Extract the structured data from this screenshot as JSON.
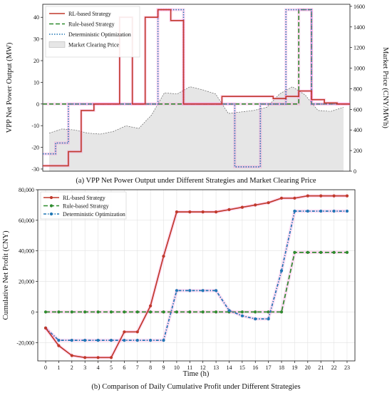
{
  "colors": {
    "rl": "#c0392b",
    "rule": "#2e8b2e",
    "det": "#1f77b4",
    "price_fill": "#e6e6e6",
    "price_line": "#666666",
    "glow": "#ff66cc"
  },
  "chart_data": [
    {
      "type": "line",
      "subtype": "step-with-area",
      "caption": "(a) VPP Net Power Output under Different Strategies and Market Clearing Price",
      "ylabel": "VPP Net Power Output (MW)",
      "ylabel_right": "Market Price (CNY/MWh)",
      "ylim": [
        -31,
        46
      ],
      "ylim_right": [
        0,
        1620
      ],
      "yticks": [
        -30,
        -20,
        -10,
        0,
        10,
        20,
        30,
        40
      ],
      "yticks_right": [
        0,
        200,
        400,
        600,
        800,
        1000,
        1200,
        1400,
        1600
      ],
      "xlim": [
        0,
        24
      ],
      "legend_position": "top-left",
      "series": [
        {
          "name": "RL-based Strategy",
          "style": "solid",
          "color": "#c0392b",
          "values": [
            -28.5,
            -28.5,
            -22,
            -3,
            0,
            0,
            40,
            0,
            40,
            43.5,
            38.5,
            0,
            0,
            0,
            3.5,
            3.5,
            3.5,
            3.5,
            2.5,
            3.5,
            6,
            2,
            0.5,
            0
          ]
        },
        {
          "name": "Rule-based Strategy",
          "style": "dashed",
          "color": "#2e8b2e",
          "values": [
            0,
            0,
            0,
            0,
            0,
            0,
            0,
            0,
            0,
            0,
            0,
            0,
            0,
            0,
            0,
            0,
            0,
            0,
            0,
            0,
            43.5,
            0,
            0,
            0
          ]
        },
        {
          "name": "Deterministic Optimization",
          "style": "dotted",
          "color": "#1f77b4",
          "values": [
            -23,
            -18,
            0,
            0,
            0,
            0,
            0,
            0,
            0,
            43.5,
            43.5,
            0,
            0,
            0,
            0,
            -29,
            -29,
            0,
            0,
            43.5,
            43.5,
            0,
            0,
            0
          ]
        },
        {
          "name": "Market Clearing Price",
          "style": "area",
          "color": "#e6e6e6",
          "axis": "right",
          "x": [
            0.5,
            1.5,
            2.5,
            3.5,
            4.5,
            5.5,
            6.5,
            7.5,
            8.5,
            9.5,
            10.5,
            11.5,
            12.5,
            13.5,
            14.5,
            15.5,
            16.5,
            17.5,
            18.5,
            19.5,
            20.5,
            21.5,
            22.5,
            23.5
          ],
          "values": [
            370,
            410,
            400,
            370,
            360,
            385,
            440,
            415,
            545,
            760,
            750,
            820,
            790,
            750,
            560,
            575,
            590,
            620,
            750,
            820,
            740,
            590,
            580,
            620
          ]
        }
      ]
    },
    {
      "type": "line",
      "caption": "(b) Comparison of Daily Cumulative Profit under Different Strategies",
      "xlabel": "Time (h)",
      "ylabel": "Cumulative Net Profit (CNY)",
      "x": [
        0,
        1,
        2,
        3,
        4,
        5,
        6,
        7,
        8,
        9,
        10,
        11,
        12,
        13,
        14,
        15,
        16,
        17,
        18,
        19,
        20,
        21,
        22,
        23
      ],
      "xlim": [
        -0.6,
        23.6
      ],
      "ylim": [
        -32000,
        80000
      ],
      "yticks": [
        -20000,
        0,
        20000,
        40000,
        60000,
        80000
      ],
      "ytick_labels": [
        "-20,000",
        "0",
        "20,000",
        "40,000",
        "60,000",
        "80,000"
      ],
      "legend_position": "top-left",
      "grid": true,
      "series": [
        {
          "name": "RL-based Strategy",
          "style": "solid",
          "marker": "circle",
          "color": "#c0392b",
          "values": [
            -10500,
            -22000,
            -28500,
            -29800,
            -29800,
            -29800,
            -13000,
            -13000,
            4000,
            36500,
            65500,
            65500,
            65500,
            65500,
            67000,
            68500,
            70000,
            71500,
            74500,
            74500,
            76000,
            76000,
            76000,
            76000
          ]
        },
        {
          "name": "Rule-based Strategy",
          "style": "dashed",
          "marker": "circle",
          "color": "#2e8b2e",
          "values": [
            0,
            0,
            0,
            0,
            0,
            0,
            0,
            0,
            0,
            0,
            0,
            0,
            0,
            0,
            0,
            0,
            0,
            0,
            0,
            39000,
            39000,
            39000,
            39000,
            39000
          ]
        },
        {
          "name": "Deterministic Optimization",
          "style": "dashdot",
          "marker": "circle",
          "color": "#1f77b4",
          "values": [
            -10500,
            -18500,
            -18500,
            -18500,
            -18500,
            -18500,
            -18500,
            -18500,
            -18500,
            -18500,
            14000,
            14000,
            14000,
            14000,
            1000,
            -2500,
            -4500,
            -4500,
            27000,
            66000,
            66000,
            66000,
            66000,
            66000
          ]
        }
      ]
    }
  ]
}
